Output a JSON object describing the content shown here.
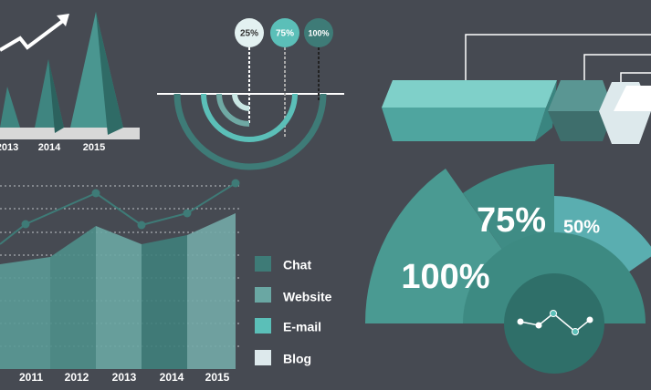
{
  "pyramids": {
    "labels": [
      "2013",
      "2014",
      "2015"
    ]
  },
  "circles": {
    "labels": [
      "25%",
      "75%",
      "100%"
    ]
  },
  "area_chart": {
    "labels": [
      "2011",
      "2012",
      "2013",
      "2014",
      "2015"
    ]
  },
  "legend": {
    "items": [
      "Chat",
      "Website",
      "E-mail",
      "Blog"
    ]
  },
  "radial": {
    "labels": [
      "75%",
      "50%",
      "100%"
    ]
  }
}
